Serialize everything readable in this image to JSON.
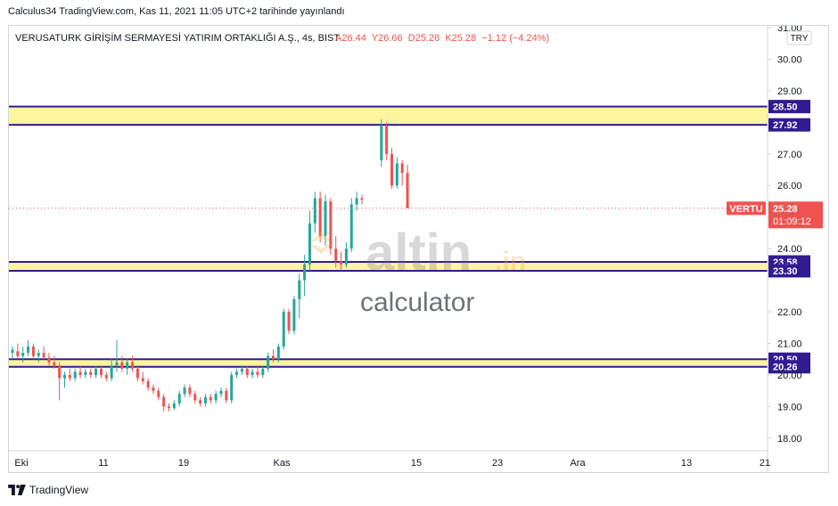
{
  "header": {
    "published": "Calculus34 TradingView.com, Kas 11, 2021 11:05 UTC+2 tarihinde yayınlandı"
  },
  "legend": {
    "name": "VERUSATURK GİRİŞİM SERMAYESİ YATIRIM ORTAKLIĞI A.Ş., 4s, BIST",
    "ohlc_text": "A26.44  Y26.66  D25.28  K25.28  −1.12 (−4.24%)"
  },
  "currency": "TRY",
  "price_tag": {
    "symbol": "VERTU",
    "price": "25.28",
    "countdown": "01:09:12",
    "color": "#ef5350"
  },
  "watermark": {
    "logo_text": "altin",
    "logo_suffix": ".in",
    "subtitle": "calculator"
  },
  "footer": {
    "brand": "TradingView"
  },
  "colors": {
    "up": "#26a69a",
    "down": "#ef5350",
    "zone": "#fff59d",
    "level": "#311b92"
  },
  "chart_data": {
    "type": "candlestick",
    "y_axis_ticks": [
      "18.00",
      "19.00",
      "20.00",
      "21.00",
      "22.00",
      "24.00",
      "26.00",
      "27.00",
      "29.00",
      "30.00",
      "31.00"
    ],
    "x_axis_ticks": [
      "Eki",
      "11",
      "19",
      "Kas",
      "15",
      "23",
      "Ara",
      "13",
      "21"
    ],
    "ylim": [
      17.6,
      31.0
    ],
    "zones": [
      {
        "low": 27.92,
        "high": 28.5,
        "labels": [
          "28.50",
          "27.92"
        ]
      },
      {
        "low": 23.3,
        "high": 23.58,
        "labels": [
          "23.58",
          "23.30"
        ]
      },
      {
        "low": 20.26,
        "high": 20.5,
        "labels": [
          "20.50",
          "20.26"
        ]
      }
    ],
    "last_price": 25.28,
    "candles": [
      {
        "o": 20.7,
        "h": 20.9,
        "l": 20.5,
        "c": 20.8
      },
      {
        "o": 20.75,
        "h": 21.0,
        "l": 20.5,
        "c": 20.6
      },
      {
        "o": 20.6,
        "h": 20.9,
        "l": 20.4,
        "c": 20.7
      },
      {
        "o": 20.7,
        "h": 21.1,
        "l": 20.6,
        "c": 20.9
      },
      {
        "o": 20.9,
        "h": 21.0,
        "l": 20.5,
        "c": 20.6
      },
      {
        "o": 20.6,
        "h": 20.8,
        "l": 20.4,
        "c": 20.7
      },
      {
        "o": 20.7,
        "h": 20.9,
        "l": 20.5,
        "c": 20.55
      },
      {
        "o": 20.55,
        "h": 20.7,
        "l": 20.3,
        "c": 20.4
      },
      {
        "o": 20.4,
        "h": 20.6,
        "l": 20.2,
        "c": 20.3
      },
      {
        "o": 20.3,
        "h": 20.4,
        "l": 19.2,
        "c": 19.9
      },
      {
        "o": 19.9,
        "h": 20.1,
        "l": 19.6,
        "c": 20.0
      },
      {
        "o": 20.0,
        "h": 20.2,
        "l": 19.8,
        "c": 19.9
      },
      {
        "o": 19.9,
        "h": 20.2,
        "l": 19.8,
        "c": 20.1
      },
      {
        "o": 20.1,
        "h": 20.3,
        "l": 19.9,
        "c": 20.0
      },
      {
        "o": 20.0,
        "h": 20.2,
        "l": 19.9,
        "c": 20.1
      },
      {
        "o": 20.1,
        "h": 20.2,
        "l": 19.9,
        "c": 20.0
      },
      {
        "o": 20.0,
        "h": 20.3,
        "l": 19.9,
        "c": 20.2
      },
      {
        "o": 20.2,
        "h": 20.3,
        "l": 19.9,
        "c": 20.0
      },
      {
        "o": 20.0,
        "h": 20.1,
        "l": 19.8,
        "c": 19.9
      },
      {
        "o": 19.9,
        "h": 20.5,
        "l": 19.8,
        "c": 20.3
      },
      {
        "o": 20.3,
        "h": 21.1,
        "l": 20.1,
        "c": 20.4
      },
      {
        "o": 20.4,
        "h": 20.6,
        "l": 20.1,
        "c": 20.2
      },
      {
        "o": 20.2,
        "h": 20.5,
        "l": 20.0,
        "c": 20.4
      },
      {
        "o": 20.4,
        "h": 20.6,
        "l": 20.1,
        "c": 20.2
      },
      {
        "o": 20.2,
        "h": 20.3,
        "l": 19.8,
        "c": 19.9
      },
      {
        "o": 19.9,
        "h": 20.1,
        "l": 19.7,
        "c": 19.8
      },
      {
        "o": 19.8,
        "h": 19.9,
        "l": 19.5,
        "c": 19.6
      },
      {
        "o": 19.6,
        "h": 19.7,
        "l": 19.4,
        "c": 19.5
      },
      {
        "o": 19.5,
        "h": 19.6,
        "l": 19.2,
        "c": 19.3
      },
      {
        "o": 19.3,
        "h": 19.4,
        "l": 18.85,
        "c": 19.0
      },
      {
        "o": 19.0,
        "h": 19.1,
        "l": 18.85,
        "c": 18.95
      },
      {
        "o": 18.95,
        "h": 19.2,
        "l": 18.9,
        "c": 19.1
      },
      {
        "o": 19.1,
        "h": 19.5,
        "l": 19.0,
        "c": 19.4
      },
      {
        "o": 19.4,
        "h": 19.7,
        "l": 19.3,
        "c": 19.6
      },
      {
        "o": 19.6,
        "h": 19.7,
        "l": 19.3,
        "c": 19.4
      },
      {
        "o": 19.4,
        "h": 19.5,
        "l": 19.1,
        "c": 19.2
      },
      {
        "o": 19.2,
        "h": 19.3,
        "l": 19.0,
        "c": 19.1
      },
      {
        "o": 19.1,
        "h": 19.4,
        "l": 19.0,
        "c": 19.3
      },
      {
        "o": 19.3,
        "h": 19.4,
        "l": 19.1,
        "c": 19.2
      },
      {
        "o": 19.2,
        "h": 19.5,
        "l": 19.1,
        "c": 19.4
      },
      {
        "o": 19.4,
        "h": 19.6,
        "l": 19.3,
        "c": 19.5
      },
      {
        "o": 19.5,
        "h": 19.6,
        "l": 19.1,
        "c": 19.2
      },
      {
        "o": 19.2,
        "h": 20.1,
        "l": 19.1,
        "c": 20.0
      },
      {
        "o": 20.0,
        "h": 20.2,
        "l": 19.9,
        "c": 20.1
      },
      {
        "o": 20.1,
        "h": 20.3,
        "l": 20.0,
        "c": 20.2
      },
      {
        "o": 20.2,
        "h": 20.3,
        "l": 19.9,
        "c": 20.0
      },
      {
        "o": 20.0,
        "h": 20.2,
        "l": 19.9,
        "c": 20.1
      },
      {
        "o": 20.1,
        "h": 20.3,
        "l": 19.9,
        "c": 20.0
      },
      {
        "o": 20.0,
        "h": 20.3,
        "l": 19.9,
        "c": 20.2
      },
      {
        "o": 20.2,
        "h": 20.7,
        "l": 20.1,
        "c": 20.6
      },
      {
        "o": 20.6,
        "h": 20.8,
        "l": 20.4,
        "c": 20.5
      },
      {
        "o": 20.5,
        "h": 21.0,
        "l": 20.4,
        "c": 20.9
      },
      {
        "o": 20.9,
        "h": 22.1,
        "l": 20.8,
        "c": 22.0
      },
      {
        "o": 22.0,
        "h": 22.1,
        "l": 21.3,
        "c": 21.4
      },
      {
        "o": 21.4,
        "h": 22.5,
        "l": 21.3,
        "c": 22.4
      },
      {
        "o": 22.4,
        "h": 23.2,
        "l": 21.8,
        "c": 23.0
      },
      {
        "o": 23.0,
        "h": 23.8,
        "l": 22.5,
        "c": 23.5
      },
      {
        "o": 23.5,
        "h": 25.2,
        "l": 23.3,
        "c": 24.8
      },
      {
        "o": 24.8,
        "h": 25.8,
        "l": 24.5,
        "c": 25.6
      },
      {
        "o": 25.6,
        "h": 25.8,
        "l": 24.2,
        "c": 24.4
      },
      {
        "o": 24.4,
        "h": 25.7,
        "l": 24.1,
        "c": 25.5
      },
      {
        "o": 25.5,
        "h": 25.6,
        "l": 23.8,
        "c": 24.0
      },
      {
        "o": 24.0,
        "h": 24.4,
        "l": 23.4,
        "c": 23.6
      },
      {
        "o": 23.6,
        "h": 23.9,
        "l": 23.3,
        "c": 23.5
      },
      {
        "o": 23.5,
        "h": 24.2,
        "l": 23.4,
        "c": 24.0
      },
      {
        "o": 24.0,
        "h": 25.6,
        "l": 23.9,
        "c": 25.4
      },
      {
        "o": 25.4,
        "h": 25.8,
        "l": 25.2,
        "c": 25.6
      },
      {
        "o": 25.6,
        "h": 25.7,
        "l": 25.4,
        "c": 25.55
      },
      {
        "o": 26.8,
        "h": 28.1,
        "l": 26.6,
        "c": 27.9
      },
      {
        "o": 27.9,
        "h": 28.0,
        "l": 26.8,
        "c": 27.0
      },
      {
        "o": 27.0,
        "h": 27.2,
        "l": 25.9,
        "c": 26.0
      },
      {
        "o": 26.0,
        "h": 26.9,
        "l": 25.9,
        "c": 26.7
      },
      {
        "o": 26.7,
        "h": 26.8,
        "l": 26.0,
        "c": 26.4
      },
      {
        "o": 26.4,
        "h": 26.66,
        "l": 25.28,
        "c": 25.28
      }
    ]
  }
}
